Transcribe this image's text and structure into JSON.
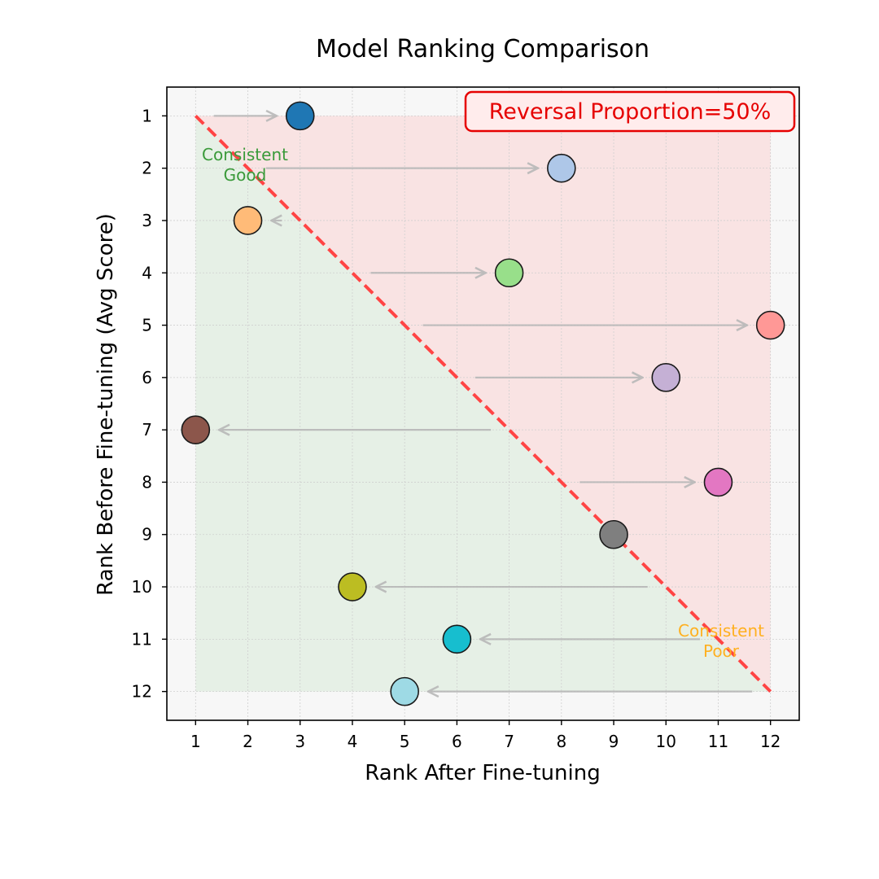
{
  "chart_data": {
    "type": "scatter",
    "title": "Model Ranking Comparison",
    "xlabel": "Rank After Fine-tuning",
    "ylabel": "Rank Before Fine-tuning (Avg Score)",
    "xlim": [
      0.45,
      12.55
    ],
    "ylim": [
      12.55,
      0.45
    ],
    "y_inverted": true,
    "xticks": [
      "1",
      "2",
      "3",
      "4",
      "5",
      "6",
      "7",
      "8",
      "9",
      "10",
      "11",
      "12"
    ],
    "yticks": [
      "1",
      "2",
      "3",
      "4",
      "5",
      "6",
      "7",
      "8",
      "9",
      "10",
      "11",
      "12"
    ],
    "grid": true,
    "points": [
      {
        "before": 1,
        "after": 3,
        "color": "#1f77b4"
      },
      {
        "before": 2,
        "after": 8,
        "color": "#aec7e8"
      },
      {
        "before": 3,
        "after": 2,
        "color": "#ffbb78"
      },
      {
        "before": 4,
        "after": 7,
        "color": "#98df8a"
      },
      {
        "before": 5,
        "after": 12,
        "color": "#ff9896"
      },
      {
        "before": 6,
        "after": 10,
        "color": "#c5b0d5"
      },
      {
        "before": 7,
        "after": 1,
        "color": "#8c564b"
      },
      {
        "before": 8,
        "after": 11,
        "color": "#e377c2"
      },
      {
        "before": 9,
        "after": 9,
        "color": "#7f7f7f"
      },
      {
        "before": 10,
        "after": 4,
        "color": "#bcbd22"
      },
      {
        "before": 11,
        "after": 6,
        "color": "#17becf"
      },
      {
        "before": 12,
        "after": 5,
        "color": "#9edae5"
      }
    ],
    "diagonal": {
      "from": [
        1,
        1
      ],
      "to": [
        12,
        12
      ],
      "color": "#ff4444",
      "style": "dashed"
    },
    "regions": [
      {
        "name": "reversal",
        "color": "#f9e3e3"
      },
      {
        "name": "consistent",
        "color": "#e6f0e6"
      }
    ],
    "annotations": {
      "reversal_box": "Reversal Proportion=50%",
      "consistent_good": [
        "Consistent",
        "Good"
      ],
      "consistent_poor": [
        "Consistent",
        "Poor"
      ]
    },
    "colors": {
      "reversal_text": "#e60000",
      "good_text": "#3a9a3a",
      "poor_text": "#ffb020",
      "arrow": "#b8b8b8",
      "plot_bg": "#f7f7f7"
    }
  }
}
